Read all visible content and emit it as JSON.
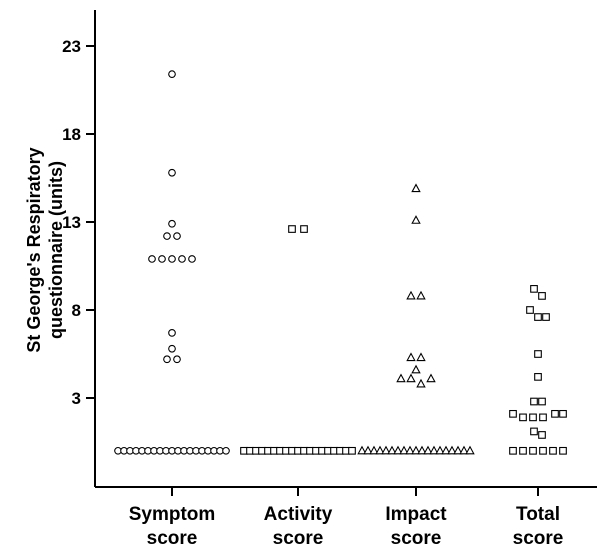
{
  "chart_data": {
    "type": "scatter",
    "title": "",
    "ylabel_lines": [
      "St George's Respiratory",
      "questionnaire (units)"
    ],
    "xlabel": "",
    "ylim": [
      -2,
      25
    ],
    "yticks": [
      3,
      8,
      13,
      18,
      23
    ],
    "categories": [
      {
        "lines": [
          "Symptom",
          "score"
        ]
      },
      {
        "lines": [
          "Activity",
          "score"
        ]
      },
      {
        "lines": [
          "Impact",
          "score"
        ]
      },
      {
        "lines": [
          "Total",
          "score"
        ]
      }
    ],
    "series": [
      {
        "category": 0,
        "marker": "circle",
        "points": [
          [
            0,
            21.4
          ],
          [
            0,
            15.8
          ],
          [
            0,
            12.9
          ],
          [
            -0.05,
            12.2
          ],
          [
            0.05,
            12.2
          ],
          [
            -0.2,
            10.9
          ],
          [
            -0.1,
            10.9
          ],
          [
            0,
            10.9
          ],
          [
            0.1,
            10.9
          ],
          [
            0.2,
            10.9
          ],
          [
            0,
            6.7
          ],
          [
            0,
            5.8
          ],
          [
            -0.05,
            5.2
          ],
          [
            0.05,
            5.2
          ],
          [
            -0.54,
            0
          ],
          [
            -0.48,
            0
          ],
          [
            -0.42,
            0
          ],
          [
            -0.36,
            0
          ],
          [
            -0.3,
            0
          ],
          [
            -0.24,
            0
          ],
          [
            -0.18,
            0
          ],
          [
            -0.12,
            0
          ],
          [
            -0.06,
            0
          ],
          [
            0,
            0
          ],
          [
            0.06,
            0
          ],
          [
            0.12,
            0
          ],
          [
            0.18,
            0
          ],
          [
            0.24,
            0
          ],
          [
            0.3,
            0
          ],
          [
            0.36,
            0
          ],
          [
            0.42,
            0
          ],
          [
            0.48,
            0
          ],
          [
            0.54,
            0
          ]
        ]
      },
      {
        "category": 1,
        "marker": "square",
        "points": [
          [
            -0.06,
            12.6
          ],
          [
            0.06,
            12.6
          ],
          [
            -0.54,
            0
          ],
          [
            -0.48,
            0
          ],
          [
            -0.42,
            0
          ],
          [
            -0.36,
            0
          ],
          [
            -0.3,
            0
          ],
          [
            -0.24,
            0
          ],
          [
            -0.18,
            0
          ],
          [
            -0.12,
            0
          ],
          [
            -0.06,
            0
          ],
          [
            0,
            0
          ],
          [
            0.06,
            0
          ],
          [
            0.12,
            0
          ],
          [
            0.18,
            0
          ],
          [
            0.24,
            0
          ],
          [
            0.3,
            0
          ],
          [
            0.36,
            0
          ],
          [
            0.42,
            0
          ],
          [
            0.48,
            0
          ],
          [
            0.54,
            0
          ]
        ]
      },
      {
        "category": 2,
        "marker": "triangle",
        "points": [
          [
            0,
            14.9
          ],
          [
            0,
            13.1
          ],
          [
            -0.05,
            8.8
          ],
          [
            0.05,
            8.8
          ],
          [
            -0.05,
            5.3
          ],
          [
            0.05,
            5.3
          ],
          [
            0,
            4.6
          ],
          [
            -0.15,
            4.1
          ],
          [
            -0.05,
            4.1
          ],
          [
            0.15,
            4.1
          ],
          [
            0.05,
            3.8
          ],
          [
            -0.54,
            0
          ],
          [
            -0.48,
            0
          ],
          [
            -0.42,
            0
          ],
          [
            -0.36,
            0
          ],
          [
            -0.3,
            0
          ],
          [
            -0.24,
            0
          ],
          [
            -0.18,
            0
          ],
          [
            -0.12,
            0
          ],
          [
            -0.06,
            0
          ],
          [
            0,
            0
          ],
          [
            0.06,
            0
          ],
          [
            0.12,
            0
          ],
          [
            0.18,
            0
          ],
          [
            0.24,
            0
          ],
          [
            0.3,
            0
          ],
          [
            0.36,
            0
          ],
          [
            0.42,
            0
          ],
          [
            0.48,
            0
          ],
          [
            0.54,
            0
          ]
        ]
      },
      {
        "category": 3,
        "marker": "square",
        "points": [
          [
            -0.04,
            9.2
          ],
          [
            0.04,
            8.8
          ],
          [
            -0.08,
            8.0
          ],
          [
            0,
            7.6
          ],
          [
            0.08,
            7.6
          ],
          [
            0,
            5.5
          ],
          [
            0,
            4.2
          ],
          [
            -0.04,
            2.8
          ],
          [
            0.04,
            2.8
          ],
          [
            -0.25,
            2.1
          ],
          [
            0.17,
            2.1
          ],
          [
            0.25,
            2.1
          ],
          [
            -0.15,
            1.9
          ],
          [
            -0.05,
            1.9
          ],
          [
            0.05,
            1.9
          ],
          [
            -0.04,
            1.1
          ],
          [
            0.04,
            0.9
          ],
          [
            -0.25,
            0
          ],
          [
            -0.15,
            0
          ],
          [
            -0.05,
            0
          ],
          [
            0.05,
            0
          ],
          [
            0.15,
            0
          ],
          [
            0.25,
            0
          ]
        ]
      }
    ],
    "grid": false,
    "legend": "none"
  }
}
